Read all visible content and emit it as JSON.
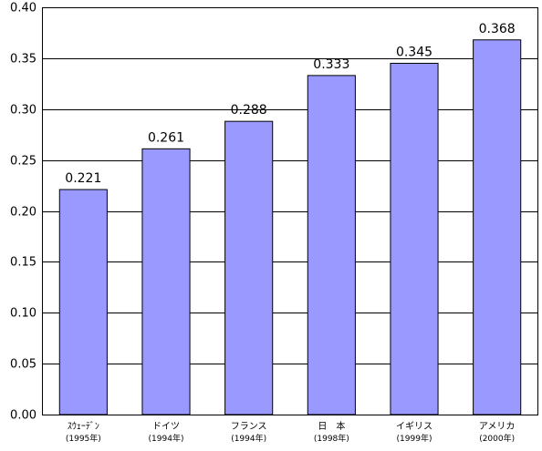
{
  "chart_data": {
    "type": "bar",
    "title": "",
    "xlabel": "",
    "ylabel": "",
    "ylim": [
      0,
      0.4
    ],
    "yticks": [
      "0.00",
      "0.05",
      "0.10",
      "0.15",
      "0.20",
      "0.25",
      "0.30",
      "0.35",
      "0.40"
    ],
    "grid": true,
    "legend": "none",
    "bar_color": "#9999ff",
    "categories": [
      {
        "name": "ｽｳｪｰﾃﾞﾝ",
        "year": "(1995年)"
      },
      {
        "name": "ドイツ",
        "year": "(1994年)"
      },
      {
        "name": "フランス",
        "year": "(1994年)"
      },
      {
        "name": "日　本",
        "year": "(1998年)"
      },
      {
        "name": "イギリス",
        "year": "(1999年)"
      },
      {
        "name": "アメリカ",
        "year": "(2000年)"
      }
    ],
    "values": [
      0.221,
      0.261,
      0.288,
      0.333,
      0.345,
      0.368
    ],
    "data_labels": [
      "0.221",
      "0.261",
      "0.288",
      "0.333",
      "0.345",
      "0.368"
    ]
  }
}
